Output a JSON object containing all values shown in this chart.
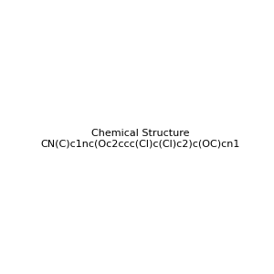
{
  "smiles": "CN(C)c1nc(Oc2ccc(Cl)c(Cl)c2)c(OC)cn1",
  "title": "",
  "bg_color": "#ffffff",
  "figsize": [
    3.0,
    3.0
  ],
  "dpi": 100
}
